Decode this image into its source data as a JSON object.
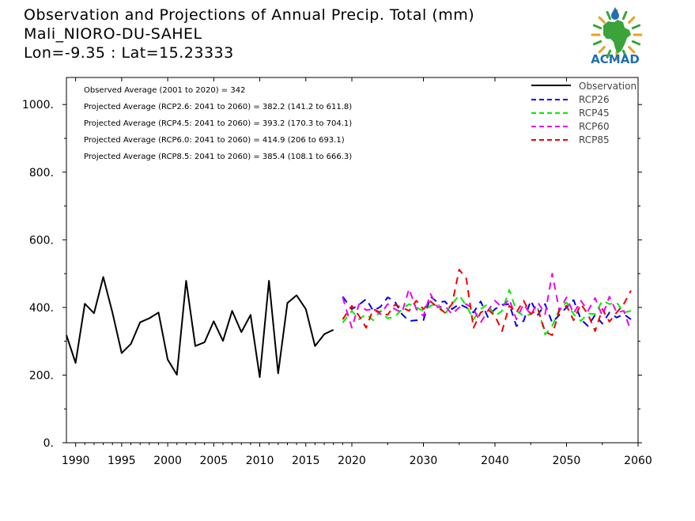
{
  "header": {
    "line1": "Observation and Projections of Annual Precip. Total (mm)",
    "line2": "Mali_NIORO-DU-SAHEL",
    "line3": "Lon=-9.35 : Lat=15.23333"
  },
  "logo": {
    "text": "ACMAD"
  },
  "colors": {
    "observation": "#000000",
    "rcp26": "#0000ee",
    "rcp45": "#00ee00",
    "rcp60": "#ee00ee",
    "rcp85": "#ee0000",
    "logo_green": "#3aa33a",
    "logo_gold": "#e8a321",
    "logo_blue": "#1f6fb3"
  },
  "chart_data": {
    "type": "line",
    "title": "Observation and Projections of Annual Precip. Total (mm)",
    "xlim": [
      1989,
      2060
    ],
    "ylim": [
      0,
      1080
    ],
    "x_ticks": [
      1990,
      1995,
      2000,
      2005,
      2010,
      2015,
      2020,
      2030,
      2040,
      2050,
      2060
    ],
    "y_ticks": [
      {
        "value": 0,
        "label": "0."
      },
      {
        "value": 200,
        "label": "200."
      },
      {
        "value": 400,
        "label": "400."
      },
      {
        "value": 600,
        "label": "600."
      },
      {
        "value": 800,
        "label": "800."
      },
      {
        "value": 1000,
        "label": "1000."
      }
    ],
    "legend_position": "top-right",
    "legend": [
      "Observation",
      "RCP26",
      "RCP45",
      "RCP60",
      "RCP85"
    ],
    "annotations": [
      "Observed Average (2001 to 2020) = 342",
      "Projected Average (RCP2.6: 2041 to 2060) = 382.2 (141.2 to 611.8)",
      "Projected Average (RCP4.5: 2041 to 2060) = 393.2 (170.3 to 704.1)",
      "Projected Average (RCP6.0: 2041 to 2060) = 414.9 (206 to 693.1)",
      "Projected Average (RCP8.5: 2041 to 2060) = 385.4 (108.1 to 666.3)"
    ],
    "series": [
      {
        "name": "Observation",
        "key": "observation",
        "style": "solid",
        "x": [
          1989,
          1990,
          1991,
          1992,
          1993,
          1994,
          1995,
          1996,
          1997,
          1998,
          1999,
          2000,
          2001,
          2002,
          2003,
          2004,
          2005,
          2006,
          2007,
          2008,
          2009,
          2010,
          2011,
          2012,
          2013,
          2014,
          2015,
          2016,
          2017,
          2018,
          2019
        ],
        "values": [
          318,
          236,
          411,
          383,
          490,
          385,
          265,
          292,
          356,
          368,
          385,
          246,
          201,
          479,
          286,
          297,
          359,
          301,
          390,
          327,
          378,
          194,
          479,
          205,
          413,
          436,
          395,
          286,
          321,
          334,
          null
        ]
      },
      {
        "name": "RCP26",
        "key": "rcp26",
        "style": "dashed",
        "x": [
          2019,
          2020,
          2021,
          2022,
          2023,
          2024,
          2025,
          2026,
          2027,
          2028,
          2029,
          2030,
          2031,
          2032,
          2033,
          2034,
          2035,
          2036,
          2037,
          2038,
          2039,
          2040,
          2041,
          2042,
          2043,
          2044,
          2045,
          2046,
          2047,
          2048,
          2049,
          2050,
          2051,
          2052,
          2053,
          2054,
          2055,
          2056,
          2057,
          2058,
          2059
        ],
        "values": [
          432,
          395,
          408,
          425,
          390,
          402,
          430,
          418,
          380,
          360,
          362,
          362,
          432,
          415,
          418,
          395,
          410,
          400,
          385,
          418,
          372,
          395,
          408,
          410,
          345,
          360,
          420,
          378,
          410,
          355,
          378,
          400,
          422,
          365,
          345,
          378,
          352,
          385,
          370,
          380,
          365
        ]
      },
      {
        "name": "RCP45",
        "key": "rcp45",
        "style": "dashed",
        "x": [
          2019,
          2020,
          2021,
          2022,
          2023,
          2024,
          2025,
          2026,
          2027,
          2028,
          2029,
          2030,
          2031,
          2032,
          2033,
          2034,
          2035,
          2036,
          2037,
          2038,
          2039,
          2040,
          2041,
          2042,
          2043,
          2044,
          2045,
          2046,
          2047,
          2048,
          2049,
          2050,
          2051,
          2052,
          2053,
          2054,
          2055,
          2056,
          2057,
          2058,
          2059
        ],
        "values": [
          355,
          390,
          365,
          380,
          362,
          390,
          368,
          372,
          395,
          410,
          400,
          390,
          405,
          412,
          380,
          410,
          436,
          405,
          365,
          395,
          410,
          375,
          390,
          452,
          390,
          375,
          380,
          398,
          320,
          345,
          395,
          415,
          380,
          360,
          382,
          380,
          420,
          410,
          415,
          385,
          390
        ]
      },
      {
        "name": "RCP60",
        "key": "rcp60",
        "style": "dashed",
        "x": [
          2019,
          2020,
          2021,
          2022,
          2023,
          2024,
          2025,
          2026,
          2027,
          2028,
          2029,
          2030,
          2031,
          2032,
          2033,
          2034,
          2035,
          2036,
          2037,
          2038,
          2039,
          2040,
          2041,
          2042,
          2043,
          2044,
          2045,
          2046,
          2047,
          2048,
          2049,
          2050,
          2051,
          2052,
          2053,
          2054,
          2055,
          2056,
          2057,
          2058,
          2059
        ],
        "values": [
          430,
          340,
          410,
          392,
          395,
          380,
          410,
          395,
          385,
          455,
          395,
          375,
          440,
          400,
          405,
          380,
          400,
          410,
          395,
          355,
          390,
          420,
          400,
          425,
          365,
          410,
          378,
          415,
          380,
          500,
          390,
          430,
          382,
          420,
          390,
          428,
          375,
          432,
          385,
          390,
          330
        ]
      },
      {
        "name": "RCP85",
        "key": "rcp85",
        "style": "dashed",
        "x": [
          2019,
          2020,
          2021,
          2022,
          2023,
          2024,
          2025,
          2026,
          2027,
          2028,
          2029,
          2030,
          2031,
          2032,
          2033,
          2034,
          2035,
          2036,
          2037,
          2038,
          2039,
          2040,
          2041,
          2042,
          2043,
          2044,
          2045,
          2046,
          2047,
          2048,
          2049,
          2050,
          2051,
          2052,
          2053,
          2054,
          2055,
          2056,
          2057,
          2058,
          2059
        ],
        "values": [
          365,
          405,
          375,
          340,
          395,
          385,
          378,
          408,
          400,
          390,
          420,
          395,
          418,
          400,
          385,
          410,
          512,
          485,
          340,
          385,
          395,
          375,
          330,
          405,
          385,
          420,
          380,
          395,
          328,
          318,
          392,
          405,
          362,
          410,
          380,
          330,
          395,
          358,
          385,
          410,
          450
        ]
      }
    ]
  }
}
